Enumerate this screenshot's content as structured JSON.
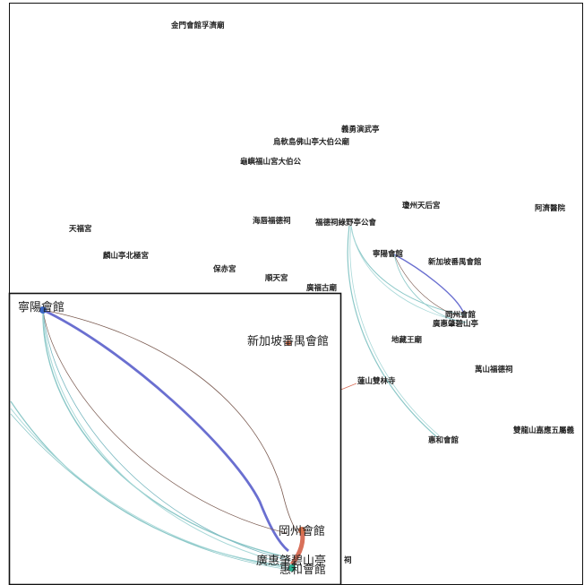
{
  "colors": {
    "frame": "#111111",
    "label": "#222222",
    "edge_blue": "#6a6fd0",
    "edge_teal": "#8cc8c8",
    "edge_brown": "#7a5a50",
    "edge_salmon": "#d8705a",
    "node_blue": "#3a66c4",
    "node_orange": "#d8704a",
    "node_teal": "#2ab090"
  },
  "overview_labels": {
    "jinmen": "金門會館孚濟廟",
    "yiyong": "義勇演武亭",
    "wuyu": "烏軟島佛山亭大伯公廟",
    "guifu": "龜嶼福山宮大伯公",
    "qiongzhou": "瓊州天后宮",
    "hejin": "阿濟醫院",
    "tianfu": "天福宮",
    "haichun": "海唇福德祠",
    "fude": "福德祠綠野亭公會",
    "linshan": "麟山亭北極宮",
    "baochi": "保赤宮",
    "shuntian": "順天宮",
    "ningyang": "寧陽會館",
    "panyu": "新加坡番禺會館",
    "guangfu": "廣福古廟",
    "gangzhou": "岡州會館",
    "huiyi": "廣惠肇碧山亭",
    "dizang": "地藏王廟",
    "wanshan": "萬山福德祠",
    "lianshan": "蓮山雙林寺",
    "shuanglong": "雙龍山嘉應五屬義",
    "huihe": "惠和會館"
  },
  "inset_labels": {
    "ningyang": "寧陽會館",
    "panyu": "新加坡番禺會館",
    "gangzhou": "岡州會館",
    "huiyi": "廣惠肇碧山亭",
    "huihe": "惠和會館",
    "ci": "祠"
  }
}
